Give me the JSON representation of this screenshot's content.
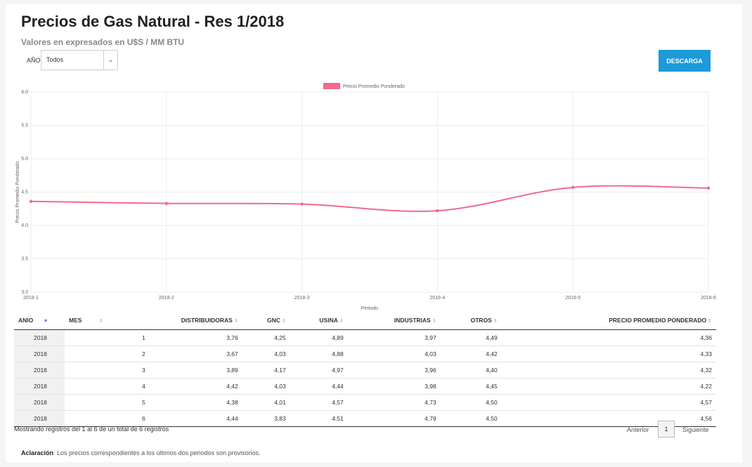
{
  "header": {
    "title": "Precios de Gas Natural - Res 1/2018",
    "subtitle": "Valores en expresados en U$S / MM BTU"
  },
  "filter": {
    "label": "AÑO",
    "selected": "Todos"
  },
  "download_label": "DESCARGA",
  "chart_data": {
    "type": "line",
    "x": [
      "2018-1",
      "2018-2",
      "2018-3",
      "2018-4",
      "2018-5",
      "2018-6"
    ],
    "series": [
      {
        "name": "Precio Promedio Ponderado",
        "values": [
          4.36,
          4.33,
          4.32,
          4.22,
          4.57,
          4.56
        ],
        "color": "#f06b8a"
      }
    ],
    "xlabel": "Periodo",
    "ylabel": "Precio Promedio Ponderado",
    "ylim": [
      3.0,
      6.0
    ],
    "yticks": [
      "3.0",
      "3.5",
      "4.0",
      "4.5",
      "5.0",
      "5.5",
      "6.0"
    ],
    "grid": true,
    "legend": "top-center"
  },
  "table": {
    "columns": [
      "ANIO",
      "MES",
      "DISTRIBUIDORAS",
      "GNC",
      "USINA",
      "INDUSTRIAS",
      "OTROS",
      "PRECIO PROMEDIO PONDERADO"
    ],
    "rows": [
      [
        "2018",
        "1",
        "3,76",
        "4,25",
        "4,89",
        "3,97",
        "4,49",
        "4,36"
      ],
      [
        "2018",
        "2",
        "3,67",
        "4,03",
        "4,88",
        "4,03",
        "4,42",
        "4,33"
      ],
      [
        "2018",
        "3",
        "3,89",
        "4,17",
        "4,97",
        "3,96",
        "4,40",
        "4,32"
      ],
      [
        "2018",
        "4",
        "4,42",
        "4,03",
        "4,44",
        "3,98",
        "4,45",
        "4,22"
      ],
      [
        "2018",
        "5",
        "4,38",
        "4,01",
        "4,57",
        "4,73",
        "4,50",
        "4,57"
      ],
      [
        "2018",
        "6",
        "4,44",
        "3,83",
        "4,51",
        "4,79",
        "4,50",
        "4,56"
      ]
    ]
  },
  "info": "Mostrando registros del 1 al 6 de un total de 6 registros",
  "pagination": {
    "prev": "Anterior",
    "page": "1",
    "next": "Siguiente"
  },
  "note": {
    "label": "Aclaración",
    "text": ": Los precios correspondientes a los últimos dos periodos son provisorios."
  }
}
